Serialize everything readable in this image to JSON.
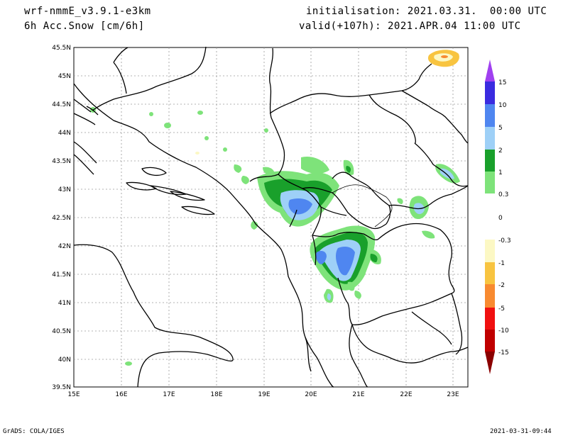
{
  "header": {
    "model": "wrf-nmmE_v3.9.1-e3km",
    "field": "6h Acc.Snow [cm/6h]",
    "init": "initialisation: 2021.03.31.  00:00 UTC",
    "valid": "valid(+107h): 2021.APR.04 11:00 UTC"
  },
  "footer": {
    "left": "GrADS: COLA/IGES",
    "right": "2021-03-31-09:44"
  },
  "map": {
    "lon_range": [
      15,
      23.3
    ],
    "lat_range": [
      39.5,
      45.5
    ],
    "lon_ticks": [
      "15E",
      "16E",
      "17E",
      "18E",
      "19E",
      "20E",
      "21E",
      "22E",
      "23E"
    ],
    "lat_ticks": [
      "45.5N",
      "45N",
      "44.5N",
      "44N",
      "43.5N",
      "43N",
      "42.5N",
      "42N",
      "41.5N",
      "41N",
      "40.5N",
      "40N",
      "39.5N"
    ]
  },
  "colorbar": {
    "labels": [
      "15",
      "10",
      "5",
      "2",
      "1",
      "0.3",
      "0",
      "-0.3",
      "-1",
      "-2",
      "-5",
      "-10",
      "-15"
    ],
    "colors": [
      "#3a2be0",
      "#4f86f0",
      "#9ed0f7",
      "#19a02b",
      "#7ee37a",
      "#ffffff",
      "#ffffff",
      "#fcf8c4",
      "#f8c440",
      "#f88a30",
      "#f01010",
      "#c00000"
    ],
    "top_color": "#a040f0",
    "bottom_color": "#8b0000"
  }
}
